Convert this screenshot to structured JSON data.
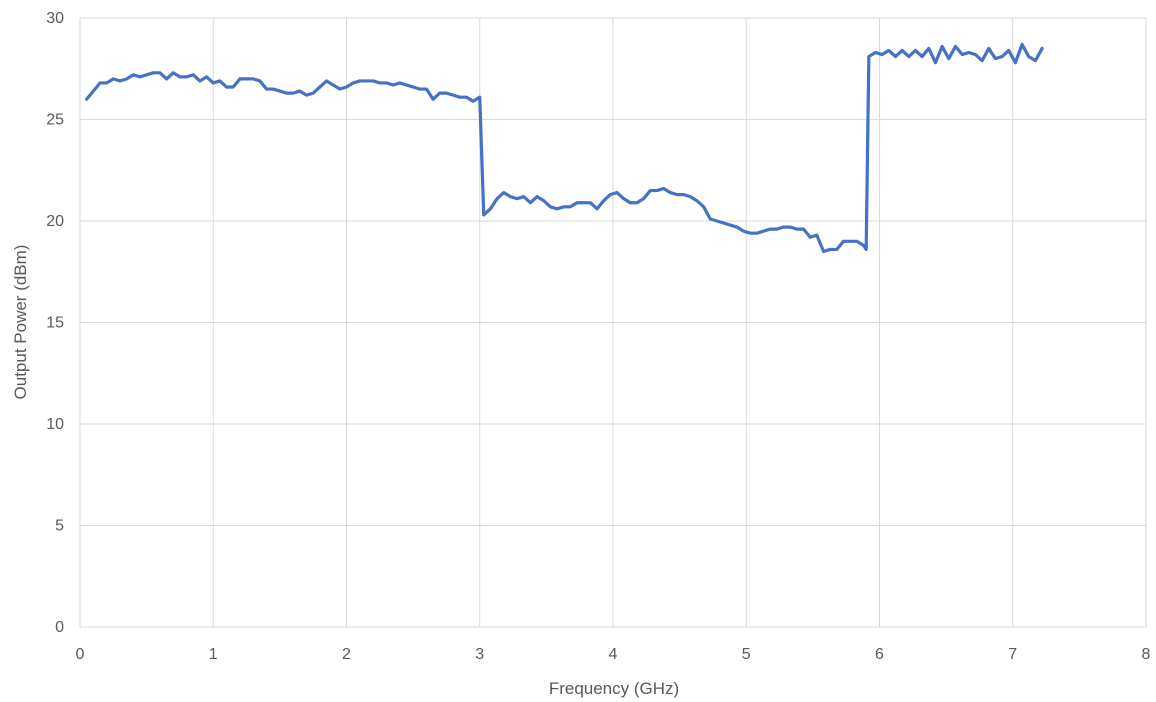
{
  "chart_data": {
    "type": "line",
    "title": "",
    "xlabel": "Frequency (GHz)",
    "ylabel": "Output Power (dBm)",
    "xlim": [
      0,
      8
    ],
    "ylim": [
      0,
      30
    ],
    "x_ticks": [
      "0",
      "1",
      "2",
      "3",
      "4",
      "5",
      "6",
      "7",
      "8"
    ],
    "y_ticks": [
      "0",
      "5",
      "10",
      "15",
      "20",
      "25",
      "30"
    ],
    "grid": true,
    "legend": "none",
    "colors": {
      "series": "#4472c4",
      "grid": "#d9d9d9",
      "text": "#595959"
    },
    "series": [
      {
        "x": [
          0.05,
          0.1,
          0.15,
          0.2,
          0.25,
          0.3,
          0.35,
          0.4,
          0.45,
          0.5,
          0.55,
          0.6,
          0.65,
          0.7,
          0.75,
          0.8,
          0.85,
          0.9,
          0.95,
          1.0,
          1.05,
          1.1,
          1.15,
          1.2,
          1.25,
          1.3,
          1.35,
          1.4,
          1.45,
          1.5,
          1.55,
          1.6,
          1.65,
          1.7,
          1.75,
          1.8,
          1.85,
          1.9,
          1.95,
          2.0,
          2.05,
          2.1,
          2.15,
          2.2,
          2.25,
          2.3,
          2.35,
          2.4,
          2.45,
          2.5,
          2.55,
          2.6,
          2.65,
          2.7,
          2.75,
          2.8,
          2.85,
          2.9,
          2.95,
          3.0,
          3.03,
          3.08,
          3.13,
          3.18,
          3.23,
          3.28,
          3.33,
          3.38,
          3.43,
          3.48,
          3.53,
          3.58,
          3.63,
          3.68,
          3.73,
          3.78,
          3.83,
          3.88,
          3.93,
          3.98,
          4.03,
          4.08,
          4.13,
          4.18,
          4.23,
          4.28,
          4.33,
          4.38,
          4.43,
          4.48,
          4.53,
          4.58,
          4.63,
          4.68,
          4.73,
          4.78,
          4.83,
          4.88,
          4.93,
          4.98,
          5.03,
          5.08,
          5.13,
          5.18,
          5.23,
          5.28,
          5.33,
          5.38,
          5.43,
          5.48,
          5.53,
          5.58,
          5.63,
          5.68,
          5.73,
          5.78,
          5.83,
          5.88,
          5.9,
          5.92,
          5.97,
          6.02,
          6.07,
          6.12,
          6.17,
          6.22,
          6.27,
          6.32,
          6.37,
          6.42,
          6.47,
          6.52,
          6.57,
          6.62,
          6.67,
          6.72,
          6.77,
          6.82,
          6.87,
          6.92,
          6.97,
          7.02,
          7.07,
          7.12,
          7.17,
          7.22
        ],
        "y": [
          26.0,
          26.4,
          26.8,
          26.8,
          27.0,
          26.9,
          27.0,
          27.2,
          27.1,
          27.2,
          27.3,
          27.3,
          27.0,
          27.3,
          27.1,
          27.1,
          27.2,
          26.9,
          27.1,
          26.8,
          26.9,
          26.6,
          26.6,
          27.0,
          27.0,
          27.0,
          26.9,
          26.5,
          26.5,
          26.4,
          26.3,
          26.3,
          26.4,
          26.2,
          26.3,
          26.6,
          26.9,
          26.7,
          26.5,
          26.6,
          26.8,
          26.9,
          26.9,
          26.9,
          26.8,
          26.8,
          26.7,
          26.8,
          26.7,
          26.6,
          26.5,
          26.5,
          26.0,
          26.3,
          26.3,
          26.2,
          26.1,
          26.1,
          25.9,
          26.1,
          20.3,
          20.6,
          21.1,
          21.4,
          21.2,
          21.1,
          21.2,
          20.9,
          21.2,
          21.0,
          20.7,
          20.6,
          20.7,
          20.7,
          20.9,
          20.9,
          20.9,
          20.6,
          21.0,
          21.3,
          21.4,
          21.1,
          20.9,
          20.9,
          21.1,
          21.5,
          21.5,
          21.6,
          21.4,
          21.3,
          21.3,
          21.2,
          21.0,
          20.7,
          20.1,
          20.0,
          19.9,
          19.8,
          19.7,
          19.5,
          19.4,
          19.4,
          19.5,
          19.6,
          19.6,
          19.7,
          19.7,
          19.6,
          19.6,
          19.2,
          19.3,
          18.5,
          18.6,
          18.6,
          19.0,
          19.0,
          19.0,
          18.8,
          18.6,
          28.1,
          28.3,
          28.2,
          28.4,
          28.1,
          28.4,
          28.1,
          28.4,
          28.1,
          28.5,
          27.8,
          28.6,
          28.0,
          28.6,
          28.2,
          28.3,
          28.2,
          27.9,
          28.5,
          28.0,
          28.1,
          28.4,
          27.8,
          28.7,
          28.1,
          27.9,
          28.5
        ]
      }
    ]
  }
}
